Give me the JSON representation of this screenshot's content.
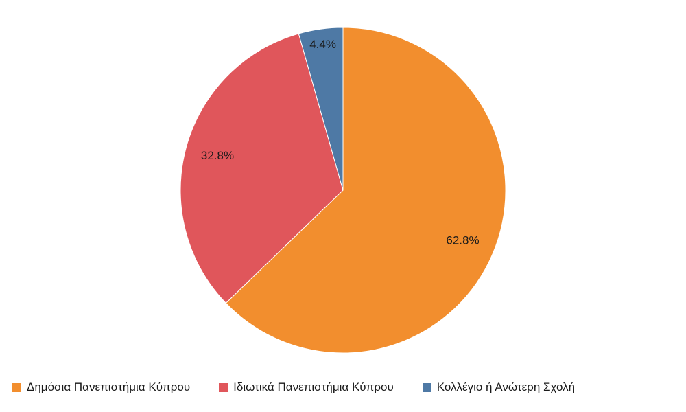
{
  "chart_data": {
    "type": "pie",
    "title": "",
    "slices": [
      {
        "label": "Δημόσια Πανεπιστήμια Κύπρου",
        "value": 62.8,
        "display": "62.8%",
        "color": "#F28E2E"
      },
      {
        "label": "Ιδιωτικά Πανεπιστήμια Κύπρου",
        "value": 32.8,
        "display": "32.8%",
        "color": "#E0565B"
      },
      {
        "label": "Κολλέγιο ή Ανώτερη Σχολή",
        "value": 4.4,
        "display": "4.4%",
        "color": "#4E79A5"
      }
    ],
    "start_angle": "12 o'clock",
    "direction": "clockwise",
    "legend_position": "bottom"
  }
}
